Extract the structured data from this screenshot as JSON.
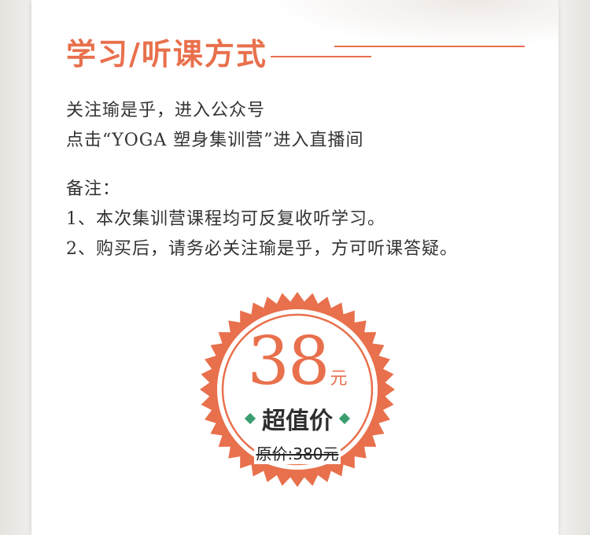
{
  "section": {
    "title": "学习/听课方式"
  },
  "instructions": {
    "line1": "关注瑜是乎，进入公众号",
    "line2": "点击“YOGA 塑身集训营”进入直播间"
  },
  "notes": {
    "heading": "备注：",
    "item1": "1、本次集训营课程均可反复收听学习。",
    "item2": "2、购买后，请务必关注瑜是乎，方可听课答疑。"
  },
  "price_badge": {
    "price": "38",
    "unit": "元",
    "label": "超值价",
    "original_price": "原价:380元"
  },
  "colors": {
    "accent": "#e8704c",
    "text": "#333333",
    "diamond": "#3a9d6e"
  }
}
